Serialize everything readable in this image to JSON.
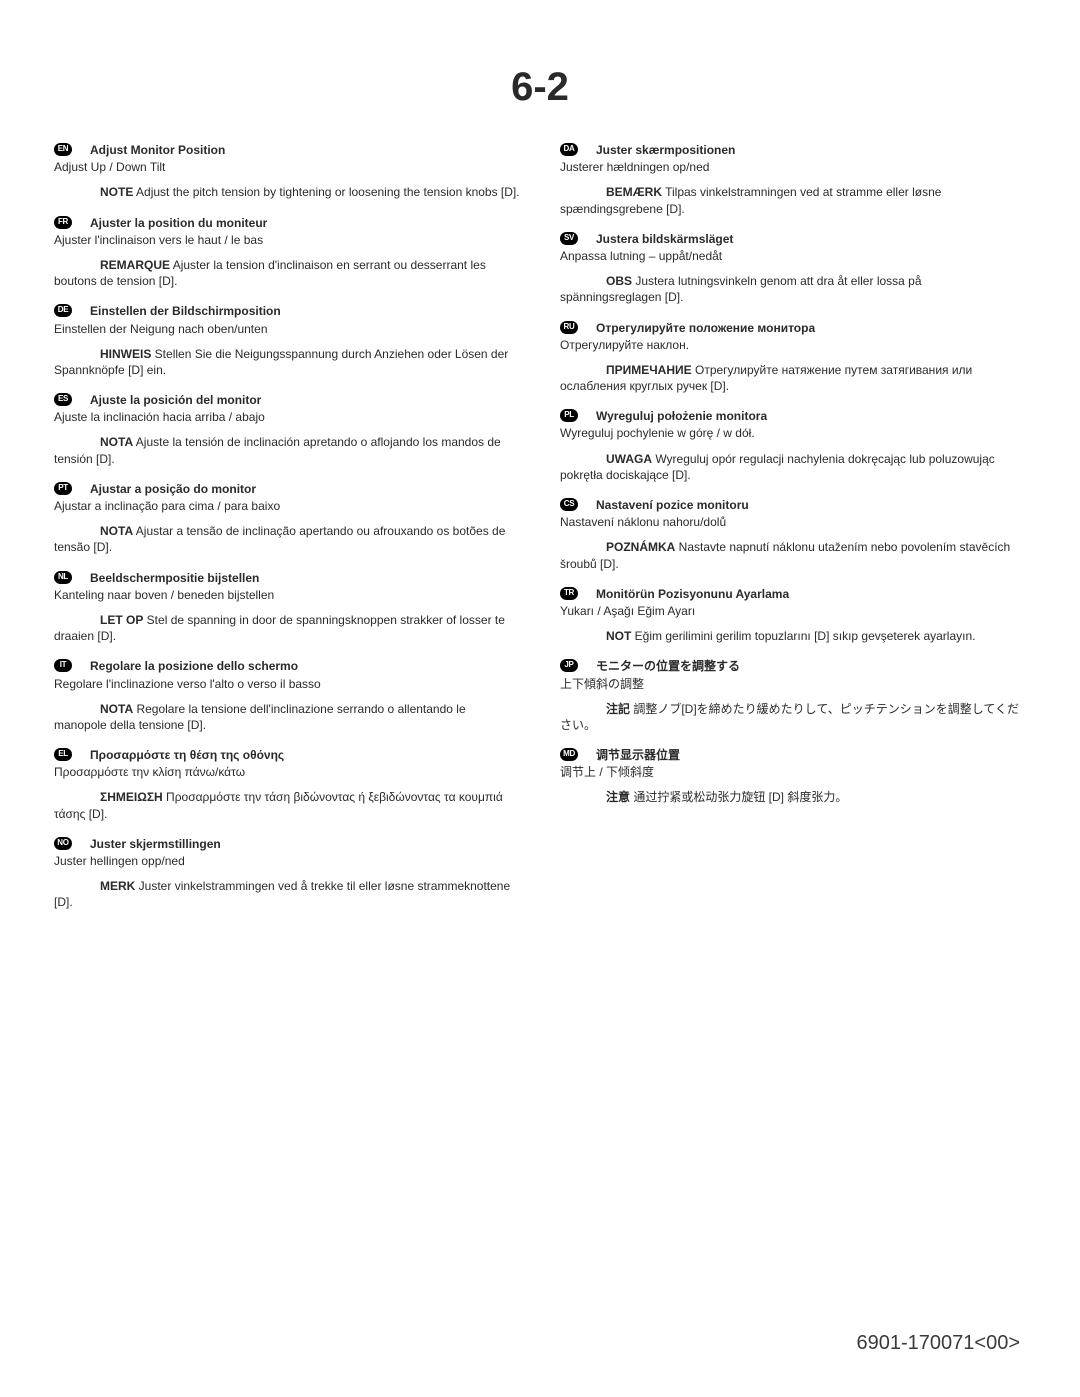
{
  "page_title": "6-2",
  "footer": "6901-170071<00>",
  "left": [
    {
      "code": "EN",
      "title": "Adjust Monitor Position",
      "sub": "Adjust Up / Down Tilt",
      "note_label": "NOTE",
      "note": "Adjust the pitch tension by tightening or loosening the tension knobs [D]."
    },
    {
      "code": "FR",
      "title": "Ajuster la position du moniteur",
      "sub": "Ajuster l'inclinaison vers le haut / le bas",
      "note_label": "REMARQUE",
      "note": "Ajuster la tension d'inclinaison en serrant ou desserrant les boutons de tension [D]."
    },
    {
      "code": "DE",
      "title": "Einstellen der Bildschirmposition",
      "sub": "Einstellen der Neigung nach oben/unten",
      "note_label": "HINWEIS",
      "note": "Stellen Sie die Neigungsspannung durch Anziehen oder Lösen der Spannknöpfe [D] ein."
    },
    {
      "code": "ES",
      "title": "Ajuste la posición del monitor",
      "sub": "Ajuste la inclinación hacia arriba / abajo",
      "note_label": "NOTA",
      "note": "Ajuste la tensión de inclinación apretando o aflojando los mandos de tensión [D]."
    },
    {
      "code": "PT",
      "title": "Ajustar a posição do monitor",
      "sub": "Ajustar a inclinação para cima / para baixo",
      "note_label": "NOTA",
      "note": "Ajustar a tensão de inclinação apertando ou afrouxando os botões de tensão [D]."
    },
    {
      "code": "NL",
      "title": "Beeldschermpositie bijstellen",
      "sub": "Kanteling naar boven / beneden bijstellen",
      "note_label": "LET OP",
      "note": "Stel de spanning in door de spanningsknoppen strakker of losser te draaien [D]."
    },
    {
      "code": "IT",
      "title": "Regolare la posizione dello schermo",
      "sub": "Regolare l'inclinazione verso l'alto o verso il basso",
      "note_label": "NOTA",
      "note": "Regolare la tensione dell'inclinazione serrando o allentando le manopole della tensione [D]."
    },
    {
      "code": "EL",
      "title": "Προσαρμόστε τη θέση της οθόνης",
      "sub": "Προσαρμόστε την κλίση πάνω/κάτω",
      "note_label": "ΣΗΜΕΙΩΣΗ",
      "note": "Προσαρμόστε την τάση βιδώνοντας ή ξεβιδώνοντας τα κουμπιά τάσης [D]."
    },
    {
      "code": "NO",
      "title": "Juster skjermstillingen",
      "sub": "Juster hellingen opp/ned",
      "note_label": "MERK",
      "note": "Juster vinkelstrammingen ved å trekke til eller løsne strammeknottene [D]."
    }
  ],
  "right": [
    {
      "code": "DA",
      "title": "Juster skærmpositionen",
      "sub": "Justerer hældningen op/ned",
      "note_label": "BEMÆRK",
      "note": "Tilpas vinkelstramningen ved at stramme eller løsne spændingsgrebene [D]."
    },
    {
      "code": "SV",
      "title": "Justera bildskärmsläget",
      "sub": "Anpassa lutning – uppåt/nedåt",
      "note_label": "OBS",
      "note": "Justera lutningsvinkeln genom att dra åt eller lossa på spänningsreglagen [D]."
    },
    {
      "code": "RU",
      "title": "Отрегулируйте положение монитора",
      "sub": "Отрегулируйте наклон.",
      "note_label": "ПРИМЕЧАНИЕ",
      "note": "Отрегулируйте натяжение путем затягивания или ослабления круглых ручек [D]."
    },
    {
      "code": "PL",
      "title": "Wyreguluj położenie monitora",
      "sub": "Wyreguluj pochylenie w górę / w dół.",
      "note_label": "UWAGA",
      "note": "Wyreguluj opór regulacji nachylenia dokręcając lub poluzowując pokrętła dociskające [D]."
    },
    {
      "code": "CS",
      "title": "Nastavení pozice monitoru",
      "sub": "Nastavení náklonu nahoru/dolů",
      "note_label": "POZNÁMKA",
      "note": "Nastavte napnutí náklonu utažením nebo povolením stavěcích šroubů [D]."
    },
    {
      "code": "TR",
      "title": "Monitörün Pozisyonunu Ayarlama",
      "sub": "Yukarı / Aşağı Eğim Ayarı",
      "note_label": "NOT",
      "note": "Eğim gerilimini gerilim topuzlarını [D] sıkıp gevşeterek ayarlayın."
    },
    {
      "code": "JP",
      "title": "モニターの位置を調整する",
      "sub": "上下傾斜の調整",
      "note_label": "注記",
      "note": "調整ノブ[D]を締めたり緩めたりして、ピッチテンションを調整してください。"
    },
    {
      "code": "MD",
      "title": "调节显示器位置",
      "sub": "调节上 / 下倾斜度",
      "note_label": "注意",
      "note": "通过拧紧或松动张力旋钮 [D] 斜度张力。"
    }
  ]
}
